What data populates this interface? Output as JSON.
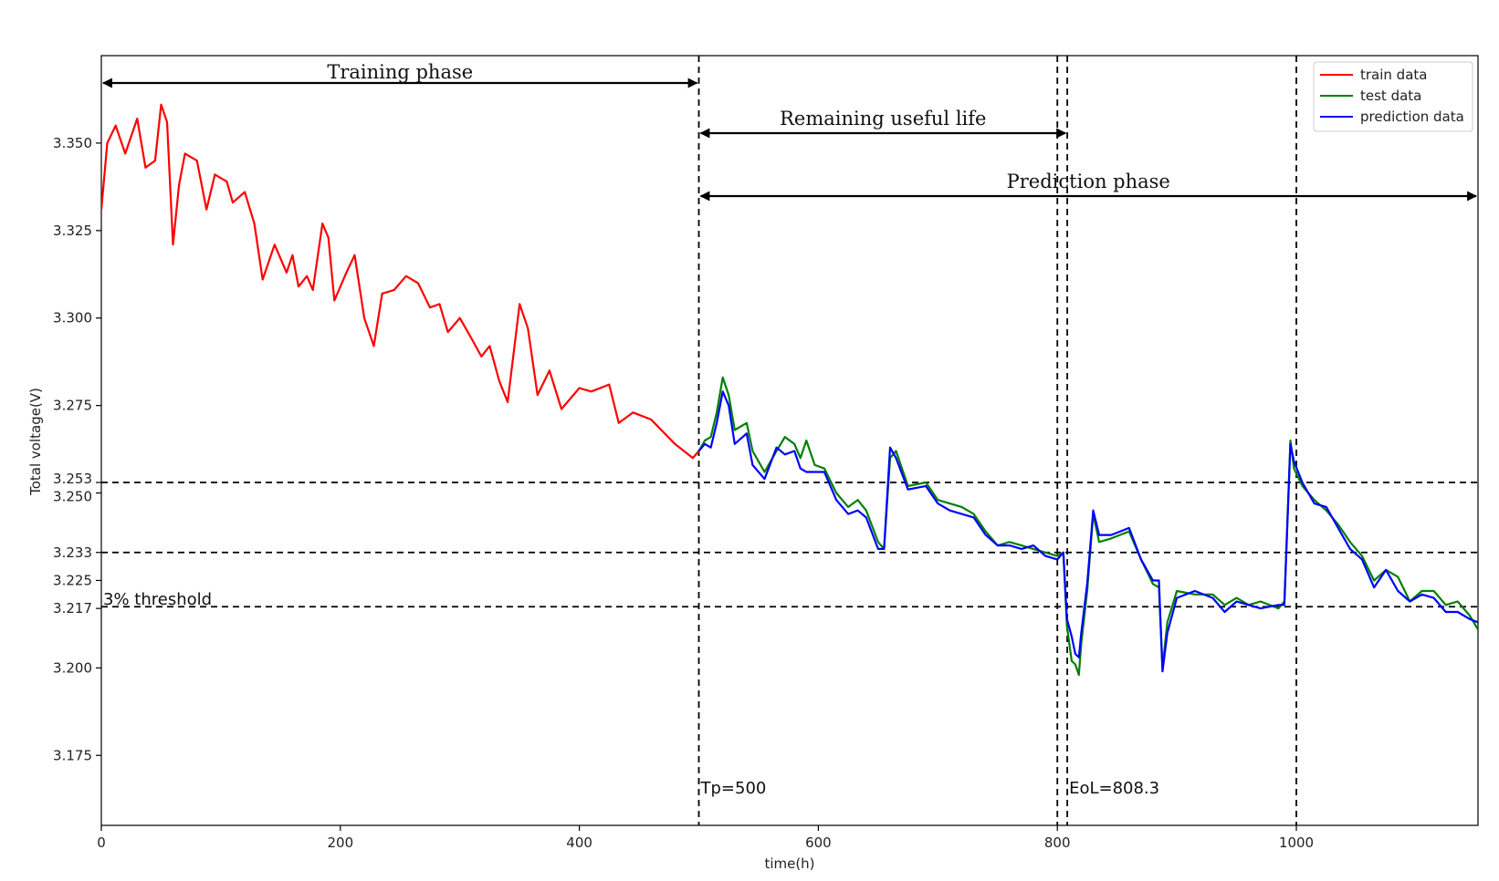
{
  "chart_data": {
    "type": "line",
    "title": "",
    "xlabel": "time(h)",
    "ylabel": "Total voltage(V)",
    "xlim": [
      0,
      1152
    ],
    "ylim": [
      3.155,
      3.375
    ],
    "grid": false,
    "legend_position": "top-right",
    "x_ticks": [
      0,
      200,
      400,
      600,
      800,
      1000
    ],
    "y_ticks": [
      3.175,
      3.2,
      3.217,
      3.225,
      3.233,
      3.25,
      3.253,
      3.275,
      3.3,
      3.325,
      3.35
    ],
    "x_tick_labels": [
      "0",
      "200",
      "400",
      "600",
      "800",
      "1000"
    ],
    "y_tick_labels": [
      "3.175",
      "3.200",
      "3.217",
      "3.225",
      "3.233",
      "3.250",
      "3.253",
      "3.275",
      "3.300",
      "3.325",
      "3.350"
    ],
    "series": [
      {
        "name": "train data",
        "color": "#ff0000",
        "points": [
          [
            0,
            3.331
          ],
          [
            5,
            3.35
          ],
          [
            12,
            3.355
          ],
          [
            20,
            3.347
          ],
          [
            30,
            3.357
          ],
          [
            37,
            3.343
          ],
          [
            45,
            3.345
          ],
          [
            50,
            3.361
          ],
          [
            55,
            3.356
          ],
          [
            60,
            3.321
          ],
          [
            65,
            3.338
          ],
          [
            70,
            3.347
          ],
          [
            80,
            3.345
          ],
          [
            88,
            3.331
          ],
          [
            95,
            3.341
          ],
          [
            105,
            3.339
          ],
          [
            110,
            3.333
          ],
          [
            120,
            3.336
          ],
          [
            128,
            3.327
          ],
          [
            135,
            3.311
          ],
          [
            145,
            3.321
          ],
          [
            155,
            3.313
          ],
          [
            160,
            3.318
          ],
          [
            165,
            3.309
          ],
          [
            172,
            3.312
          ],
          [
            177,
            3.308
          ],
          [
            185,
            3.327
          ],
          [
            190,
            3.323
          ],
          [
            195,
            3.305
          ],
          [
            205,
            3.313
          ],
          [
            212,
            3.318
          ],
          [
            220,
            3.3
          ],
          [
            228,
            3.292
          ],
          [
            235,
            3.307
          ],
          [
            245,
            3.308
          ],
          [
            255,
            3.312
          ],
          [
            265,
            3.31
          ],
          [
            275,
            3.303
          ],
          [
            283,
            3.304
          ],
          [
            290,
            3.296
          ],
          [
            300,
            3.3
          ],
          [
            310,
            3.294
          ],
          [
            318,
            3.289
          ],
          [
            325,
            3.292
          ],
          [
            333,
            3.282
          ],
          [
            340,
            3.276
          ],
          [
            350,
            3.304
          ],
          [
            357,
            3.297
          ],
          [
            365,
            3.278
          ],
          [
            375,
            3.285
          ],
          [
            385,
            3.274
          ],
          [
            400,
            3.28
          ],
          [
            410,
            3.279
          ],
          [
            425,
            3.281
          ],
          [
            433,
            3.27
          ],
          [
            445,
            3.273
          ],
          [
            460,
            3.271
          ],
          [
            480,
            3.264
          ],
          [
            495,
            3.26
          ],
          [
            500,
            3.262
          ]
        ]
      },
      {
        "name": "test data",
        "color": "#008000",
        "points": [
          [
            500,
            3.262
          ],
          [
            505,
            3.265
          ],
          [
            510,
            3.266
          ],
          [
            515,
            3.273
          ],
          [
            520,
            3.283
          ],
          [
            525,
            3.278
          ],
          [
            530,
            3.268
          ],
          [
            540,
            3.27
          ],
          [
            545,
            3.262
          ],
          [
            555,
            3.256
          ],
          [
            565,
            3.262
          ],
          [
            572,
            3.266
          ],
          [
            580,
            3.264
          ],
          [
            585,
            3.26
          ],
          [
            590,
            3.265
          ],
          [
            597,
            3.258
          ],
          [
            605,
            3.257
          ],
          [
            615,
            3.25
          ],
          [
            625,
            3.246
          ],
          [
            633,
            3.248
          ],
          [
            640,
            3.245
          ],
          [
            650,
            3.236
          ],
          [
            655,
            3.234
          ],
          [
            660,
            3.26
          ],
          [
            665,
            3.262
          ],
          [
            675,
            3.252
          ],
          [
            690,
            3.253
          ],
          [
            700,
            3.248
          ],
          [
            710,
            3.247
          ],
          [
            720,
            3.246
          ],
          [
            730,
            3.244
          ],
          [
            740,
            3.239
          ],
          [
            750,
            3.235
          ],
          [
            760,
            3.236
          ],
          [
            770,
            3.235
          ],
          [
            780,
            3.234
          ],
          [
            790,
            3.233
          ],
          [
            800,
            3.232
          ],
          [
            805,
            3.233
          ],
          [
            808,
            3.212
          ],
          [
            812,
            3.202
          ],
          [
            815,
            3.201
          ],
          [
            818,
            3.198
          ],
          [
            820,
            3.207
          ],
          [
            825,
            3.222
          ],
          [
            830,
            3.244
          ],
          [
            835,
            3.236
          ],
          [
            845,
            3.237
          ],
          [
            860,
            3.239
          ],
          [
            870,
            3.231
          ],
          [
            880,
            3.224
          ],
          [
            885,
            3.223
          ],
          [
            888,
            3.2
          ],
          [
            892,
            3.213
          ],
          [
            900,
            3.222
          ],
          [
            915,
            3.221
          ],
          [
            930,
            3.221
          ],
          [
            940,
            3.218
          ],
          [
            950,
            3.22
          ],
          [
            960,
            3.218
          ],
          [
            970,
            3.219
          ],
          [
            985,
            3.217
          ],
          [
            990,
            3.219
          ],
          [
            995,
            3.265
          ],
          [
            998,
            3.257
          ],
          [
            1005,
            3.252
          ],
          [
            1015,
            3.248
          ],
          [
            1025,
            3.245
          ],
          [
            1035,
            3.241
          ],
          [
            1045,
            3.236
          ],
          [
            1055,
            3.232
          ],
          [
            1065,
            3.225
          ],
          [
            1075,
            3.228
          ],
          [
            1085,
            3.226
          ],
          [
            1095,
            3.219
          ],
          [
            1105,
            3.222
          ],
          [
            1115,
            3.222
          ],
          [
            1125,
            3.218
          ],
          [
            1135,
            3.219
          ],
          [
            1145,
            3.215
          ],
          [
            1152,
            3.211
          ]
        ]
      },
      {
        "name": "prediction data",
        "color": "#0000ff",
        "points": [
          [
            500,
            3.262
          ],
          [
            505,
            3.264
          ],
          [
            510,
            3.263
          ],
          [
            515,
            3.27
          ],
          [
            520,
            3.279
          ],
          [
            525,
            3.275
          ],
          [
            530,
            3.264
          ],
          [
            540,
            3.267
          ],
          [
            545,
            3.258
          ],
          [
            555,
            3.254
          ],
          [
            565,
            3.263
          ],
          [
            572,
            3.261
          ],
          [
            580,
            3.262
          ],
          [
            585,
            3.257
          ],
          [
            590,
            3.256
          ],
          [
            597,
            3.256
          ],
          [
            605,
            3.256
          ],
          [
            615,
            3.248
          ],
          [
            625,
            3.244
          ],
          [
            633,
            3.245
          ],
          [
            640,
            3.243
          ],
          [
            650,
            3.234
          ],
          [
            655,
            3.234
          ],
          [
            660,
            3.263
          ],
          [
            665,
            3.26
          ],
          [
            675,
            3.251
          ],
          [
            690,
            3.252
          ],
          [
            700,
            3.247
          ],
          [
            710,
            3.245
          ],
          [
            720,
            3.244
          ],
          [
            730,
            3.243
          ],
          [
            740,
            3.238
          ],
          [
            750,
            3.235
          ],
          [
            760,
            3.235
          ],
          [
            770,
            3.234
          ],
          [
            780,
            3.235
          ],
          [
            790,
            3.232
          ],
          [
            800,
            3.231
          ],
          [
            805,
            3.233
          ],
          [
            808,
            3.214
          ],
          [
            812,
            3.209
          ],
          [
            815,
            3.204
          ],
          [
            818,
            3.203
          ],
          [
            820,
            3.21
          ],
          [
            825,
            3.224
          ],
          [
            830,
            3.245
          ],
          [
            835,
            3.238
          ],
          [
            845,
            3.238
          ],
          [
            860,
            3.24
          ],
          [
            870,
            3.231
          ],
          [
            880,
            3.225
          ],
          [
            885,
            3.225
          ],
          [
            888,
            3.199
          ],
          [
            892,
            3.21
          ],
          [
            900,
            3.22
          ],
          [
            915,
            3.222
          ],
          [
            930,
            3.22
          ],
          [
            940,
            3.216
          ],
          [
            950,
            3.219
          ],
          [
            960,
            3.218
          ],
          [
            970,
            3.217
          ],
          [
            985,
            3.218
          ],
          [
            990,
            3.218
          ],
          [
            995,
            3.264
          ],
          [
            998,
            3.259
          ],
          [
            1005,
            3.253
          ],
          [
            1015,
            3.247
          ],
          [
            1025,
            3.246
          ],
          [
            1035,
            3.24
          ],
          [
            1045,
            3.234
          ],
          [
            1055,
            3.231
          ],
          [
            1065,
            3.223
          ],
          [
            1075,
            3.228
          ],
          [
            1085,
            3.222
          ],
          [
            1095,
            3.219
          ],
          [
            1105,
            3.221
          ],
          [
            1115,
            3.22
          ],
          [
            1125,
            3.216
          ],
          [
            1135,
            3.216
          ],
          [
            1145,
            3.214
          ],
          [
            1152,
            3.213
          ]
        ]
      }
    ],
    "reference_lines": {
      "horizontal": [
        3.253,
        3.233,
        3.2175
      ],
      "vertical": [
        500,
        800,
        808.3,
        1000
      ]
    },
    "annotations": {
      "training_phase": "Training phase",
      "remaining_useful_life": "Remaining useful life",
      "prediction_phase": "Prediction phase",
      "threshold": "3% threshold",
      "tp": "Tp=500",
      "eol": "EoL=808.3"
    },
    "spans": {
      "training": [
        0,
        500
      ],
      "rul": [
        500,
        808.3
      ],
      "prediction": [
        500,
        1152
      ]
    }
  }
}
